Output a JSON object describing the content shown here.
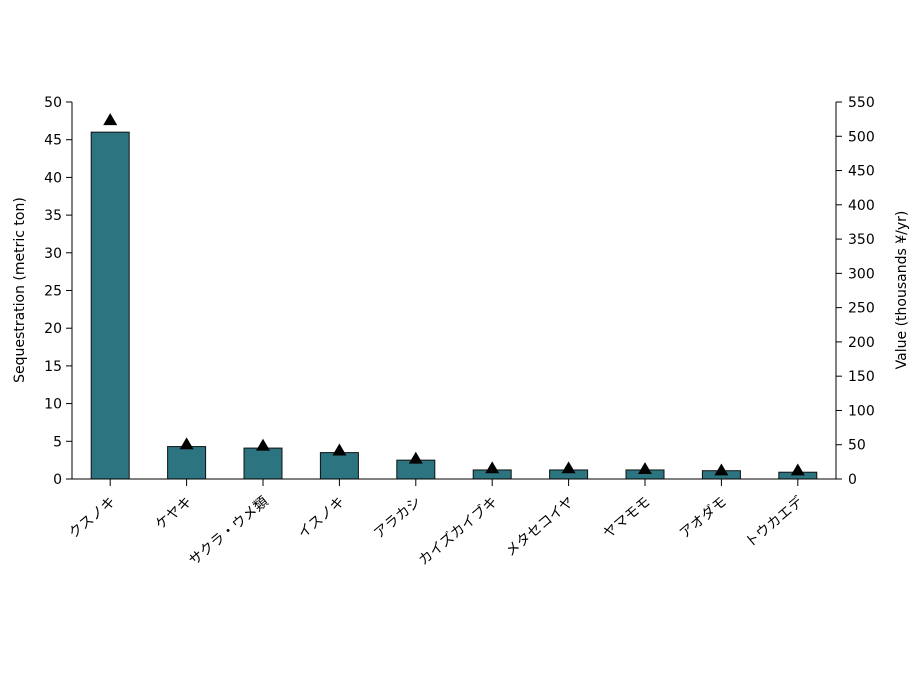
{
  "chart_data": {
    "type": "bar",
    "title": "",
    "categories": [
      "クスノキ",
      "ケヤキ",
      "サクラ・ウメ類",
      "イスノキ",
      "アラカシ",
      "カイズカイブキ",
      "メタセコイヤ",
      "ヤマモモ",
      "アオダモ",
      "トウカエデ"
    ],
    "series": [
      {
        "type": "bar",
        "axis": "left",
        "values": [
          46,
          4.3,
          4.1,
          3.5,
          2.5,
          1.2,
          1.2,
          1.2,
          1.1,
          0.9
        ],
        "color": "#2b7480"
      },
      {
        "type": "marker",
        "marker": "triangle",
        "axis": "right",
        "values": [
          524,
          51,
          49,
          42,
          30,
          16,
          16,
          15,
          13,
          13
        ],
        "color": "#000000"
      }
    ],
    "ylabel": "Sequestration (metric ton)",
    "ylabel_right": "Value (thousands ¥/yr)",
    "ylim": [
      0,
      50
    ],
    "ylim_right": [
      0,
      550
    ],
    "yticks": [
      "0",
      "5",
      "10",
      "15",
      "20",
      "25",
      "30",
      "35",
      "40",
      "45",
      "50"
    ],
    "yticks_right": [
      "0",
      "50",
      "100",
      "150",
      "200",
      "250",
      "300",
      "350",
      "400",
      "450",
      "500",
      "550"
    ],
    "grid": false,
    "legend": "none"
  }
}
